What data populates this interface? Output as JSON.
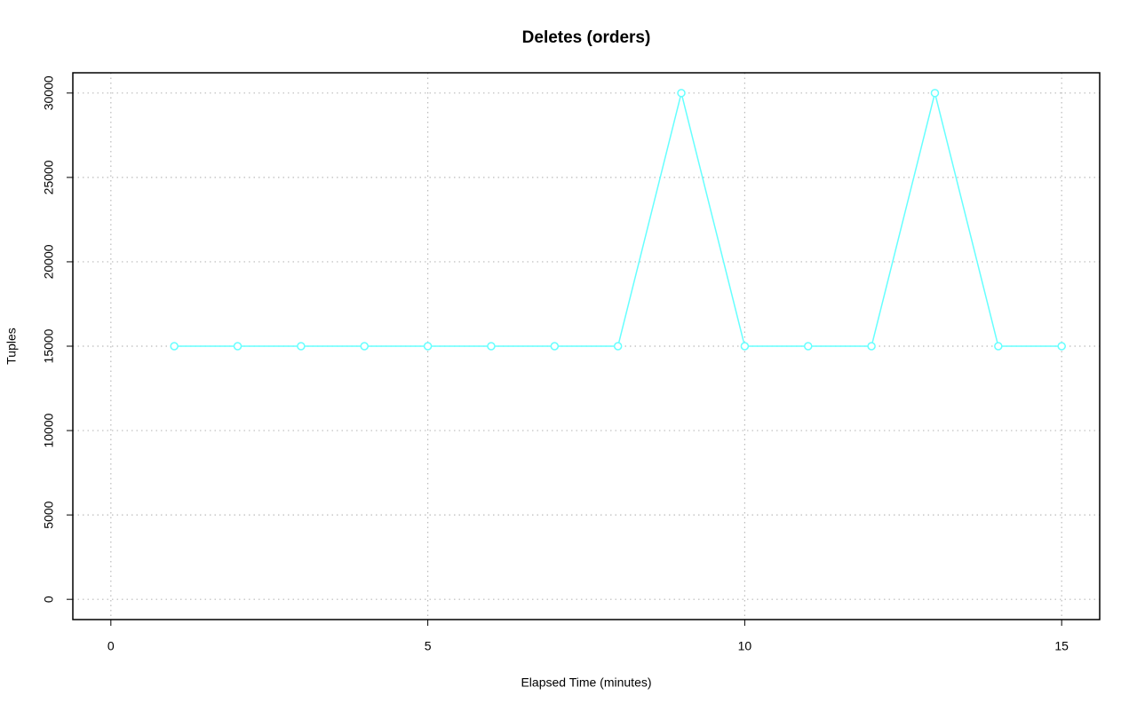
{
  "chart_data": {
    "type": "line",
    "title": "Deletes (orders)",
    "x_label": "Elapsed Time (minutes)",
    "y_label": "Tuples",
    "x": [
      1,
      2,
      3,
      4,
      5,
      6,
      7,
      8,
      9,
      10,
      11,
      12,
      13,
      14,
      15
    ],
    "values": [
      15000,
      15000,
      15000,
      15000,
      15000,
      15000,
      15000,
      15000,
      30000,
      15000,
      15000,
      15000,
      30000,
      15000,
      15000
    ],
    "color": "#66ffff",
    "xlim": [
      -0.6,
      15.6
    ],
    "xticks": [
      0,
      5,
      10,
      15
    ],
    "ylim": [
      -1200,
      31200
    ],
    "yticks": [
      0,
      5000,
      10000,
      15000,
      20000,
      25000,
      30000
    ],
    "grid": true
  }
}
